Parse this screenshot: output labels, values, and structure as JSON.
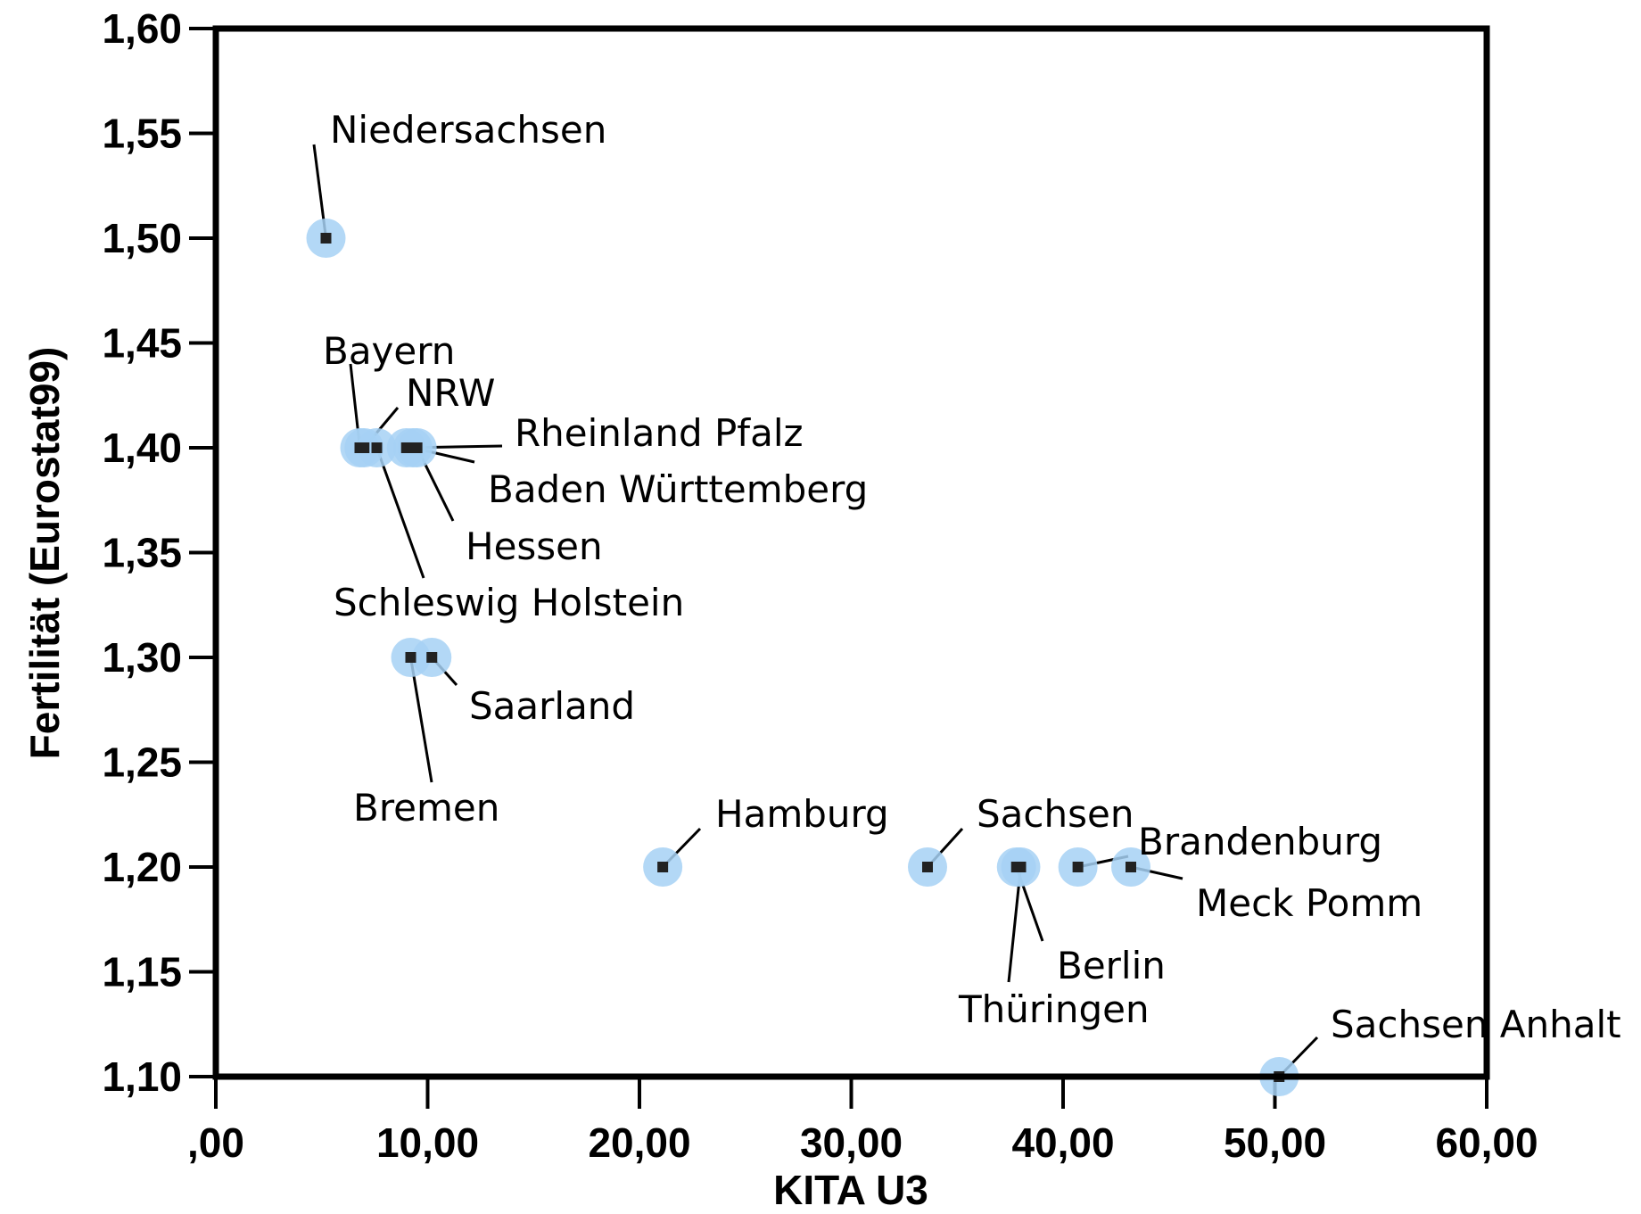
{
  "chart_data": {
    "type": "scatter",
    "xlabel": "KITA U3",
    "ylabel": "Fertilität (Eurostat99)",
    "xlim": [
      0,
      60
    ],
    "ylim": [
      1.1,
      1.6
    ],
    "xticks": [
      ",00",
      "10,00",
      "20,00",
      "30,00",
      "40,00",
      "50,00",
      "60,00"
    ],
    "yticks": [
      "1,10",
      "1,15",
      "1,20",
      "1,25",
      "1,30",
      "1,35",
      "1,40",
      "1,45",
      "1,50",
      "1,55",
      "1,60"
    ],
    "grid": false,
    "colors": {
      "halo": "#a6d1f5",
      "marker": "#222222",
      "frame": "#000000"
    },
    "points": [
      {
        "label": "Niedersachsen",
        "x": 5.2,
        "y": 1.5
      },
      {
        "label": "Bayern",
        "x": 6.8,
        "y": 1.4
      },
      {
        "label": "NRW",
        "x": 7.0,
        "y": 1.4
      },
      {
        "label": "Schleswig Holstein",
        "x": 7.6,
        "y": 1.4
      },
      {
        "label": "Rheinland Pfalz",
        "x": 9.0,
        "y": 1.4
      },
      {
        "label": "Baden Württemberg",
        "x": 9.3,
        "y": 1.4
      },
      {
        "label": "Hessen",
        "x": 9.5,
        "y": 1.4
      },
      {
        "label": "Bremen",
        "x": 9.2,
        "y": 1.3
      },
      {
        "label": "Saarland",
        "x": 10.2,
        "y": 1.3
      },
      {
        "label": "Hamburg",
        "x": 21.1,
        "y": 1.2
      },
      {
        "label": "Sachsen",
        "x": 33.6,
        "y": 1.2
      },
      {
        "label": "Berlin",
        "x": 37.8,
        "y": 1.2
      },
      {
        "label": "Thüringen",
        "x": 38.0,
        "y": 1.2
      },
      {
        "label": "Brandenburg",
        "x": 40.7,
        "y": 1.2
      },
      {
        "label": "Meck Pomm",
        "x": 43.2,
        "y": 1.2
      },
      {
        "label": "Sachsen Anhalt",
        "x": 50.2,
        "y": 1.1
      }
    ]
  }
}
